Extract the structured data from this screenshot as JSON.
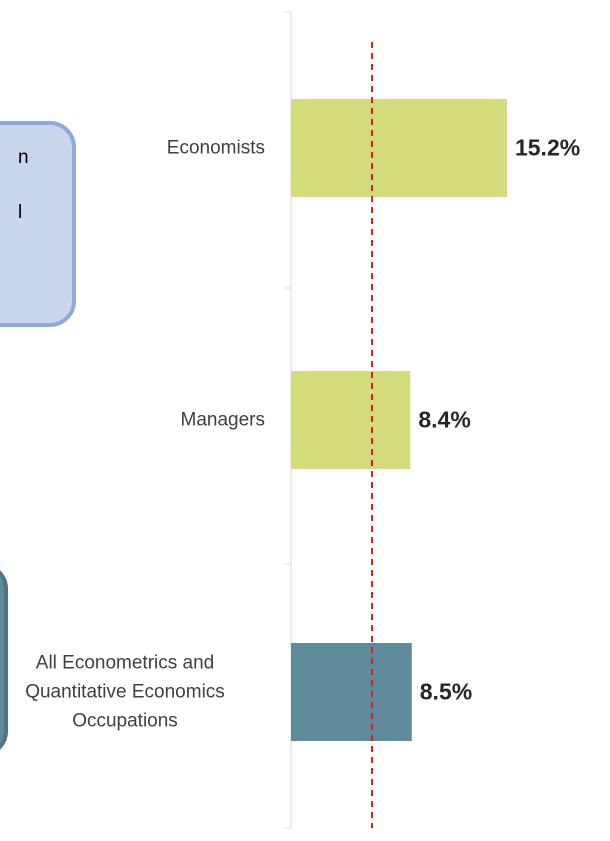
{
  "chart_data": {
    "type": "bar",
    "orientation": "horizontal",
    "categories": [
      "Economists",
      "Managers",
      "All Econometrics and Quantitative Economics Occupations"
    ],
    "values": [
      15.2,
      8.4,
      8.5
    ],
    "value_labels": [
      "15.2%",
      "8.4%",
      "8.5%"
    ],
    "colors": [
      "#d4db7a",
      "#d4db7a",
      "#5e8a9b"
    ],
    "xlim": [
      0,
      22
    ],
    "reference_line": 5.7,
    "reference_line_color": "#e0201c",
    "annotations": [
      "n",
      "l"
    ]
  }
}
